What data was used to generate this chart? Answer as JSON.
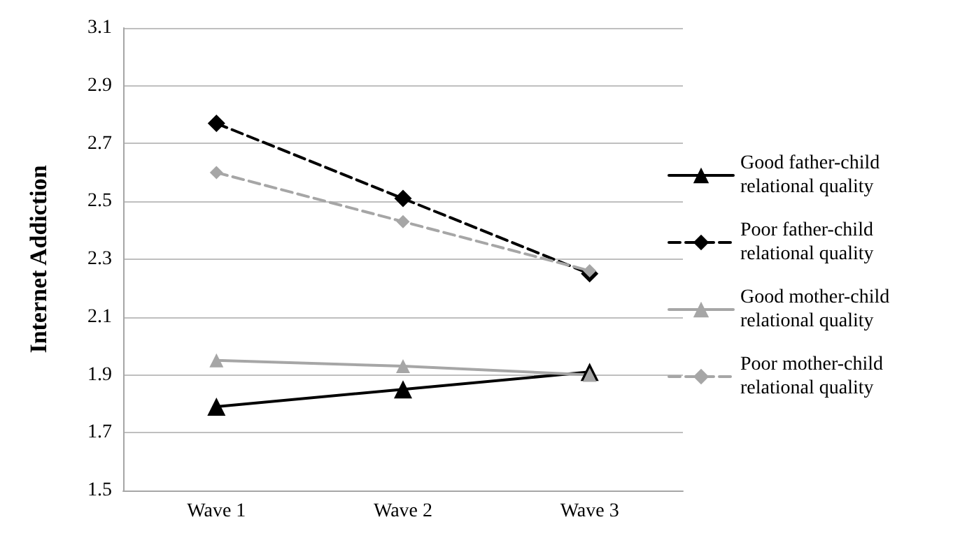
{
  "chart_data": {
    "type": "line",
    "ylabel": "Internet Addiction",
    "categories": [
      "Wave 1",
      "Wave 2",
      "Wave 3"
    ],
    "ylim": [
      1.5,
      3.1
    ],
    "yticks": [
      1.5,
      1.7,
      1.9,
      2.1,
      2.3,
      2.5,
      2.7,
      2.9,
      3.1
    ],
    "grid": "y",
    "legend": "right",
    "series": [
      {
        "name": "Good father-child relational quality",
        "color": "#000000",
        "marker": "triangle",
        "line_style": "solid",
        "values": [
          1.79,
          1.85,
          1.91
        ]
      },
      {
        "name": "Poor father-child relational quality",
        "color": "#000000",
        "marker": "diamond",
        "line_style": "dashed",
        "values": [
          2.77,
          2.51,
          2.25
        ]
      },
      {
        "name": "Good mother-child relational quality",
        "color": "#a6a6a6",
        "marker": "triangle",
        "line_style": "solid",
        "values": [
          1.95,
          1.93,
          1.9
        ]
      },
      {
        "name": "Poor mother-child relational quality",
        "color": "#a6a6a6",
        "marker": "diamond",
        "line_style": "dashed",
        "values": [
          2.6,
          2.43,
          2.26
        ]
      }
    ]
  }
}
